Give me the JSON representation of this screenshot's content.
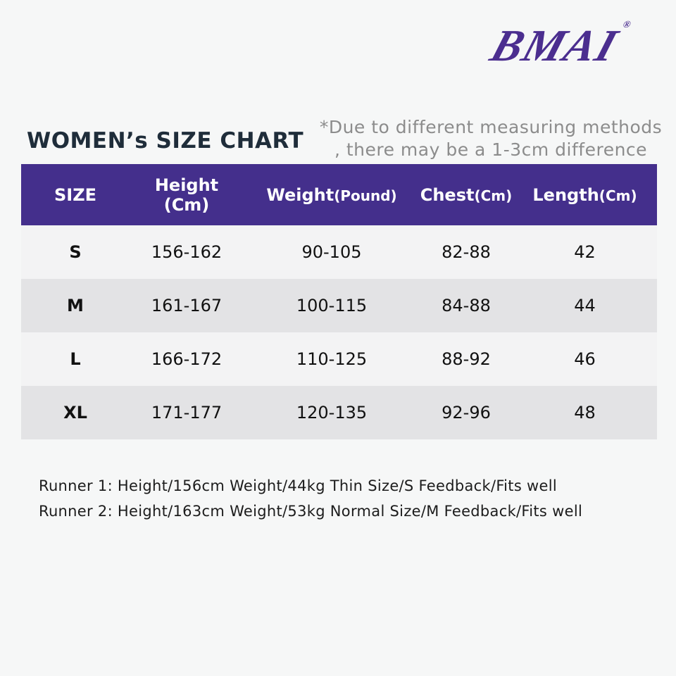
{
  "logo": {
    "text": "BMAI",
    "mark": "®"
  },
  "title": "WOMEN’s SIZE CHART",
  "note": [
    "*Due to different measuring methods",
    ", there may be a 1-3cm difference"
  ],
  "table": {
    "headers": [
      {
        "main": "SIZE"
      },
      {
        "main": "Height (Cm)"
      },
      {
        "main": "Weight",
        "sub": "(Pound)"
      },
      {
        "main": "Chest",
        "sub": "(Cm)"
      },
      {
        "main": "Length",
        "sub": "(Cm)"
      }
    ],
    "rows": [
      [
        "S",
        "156-162",
        "90-105",
        "82-88",
        "42"
      ],
      [
        "M",
        "161-167",
        "100-115",
        "84-88",
        "44"
      ],
      [
        "L",
        "166-172",
        "110-125",
        "88-92",
        "46"
      ],
      [
        "XL",
        "171-177",
        "120-135",
        "92-96",
        "48"
      ]
    ]
  },
  "runners": [
    "Runner 1: Height/156cm Weight/44kg Thin Size/S Feedback/Fits well",
    "Runner 2: Height/163cm Weight/53kg Normal Size/M Feedback/Fits well"
  ]
}
